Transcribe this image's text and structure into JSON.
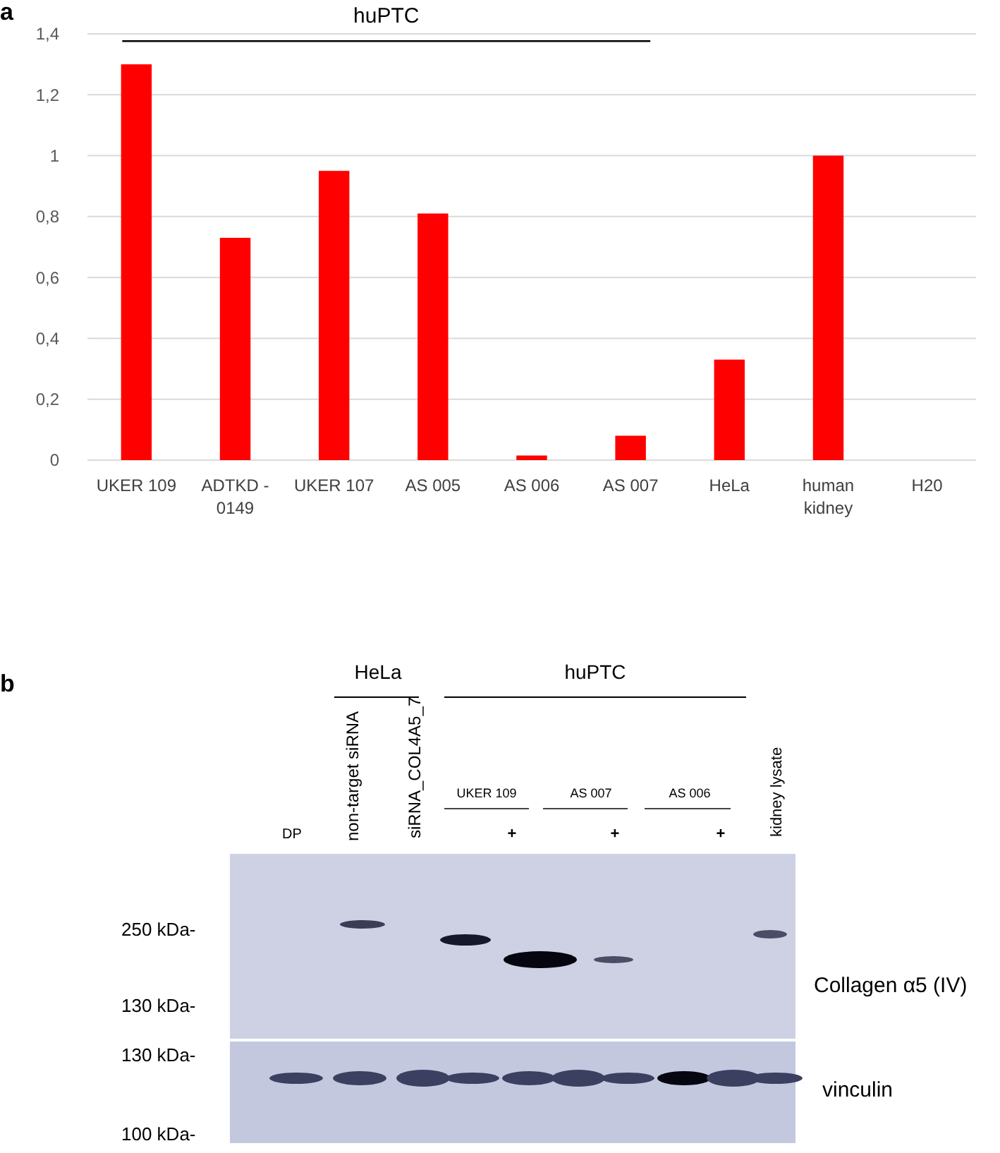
{
  "chart_data": [
    {
      "type": "bar",
      "title": "a",
      "categories": [
        "UKER 109",
        "ADTKD -\n0149",
        "UKER 107",
        "AS 005",
        "AS 006",
        "AS 007",
        "HeLa",
        "human\nkidney",
        "H20"
      ],
      "values": [
        1.3,
        0.73,
        0.95,
        0.81,
        0.015,
        0.08,
        0.33,
        1.0,
        0
      ],
      "color": "#ff0000",
      "ylim": [
        0,
        1.4
      ],
      "yticks": [
        0,
        {
          "value": 0.2,
          "label": "0,2"
        },
        {
          "value": 0.4,
          "label": "0,4"
        },
        {
          "value": 0.6,
          "label": "0,6"
        },
        {
          "value": 0.8,
          "label": "0,8"
        },
        1,
        {
          "value": 1.2,
          "label": "1,2"
        },
        {
          "value": 1.4,
          "label": "1,4"
        }
      ],
      "grid": "y",
      "annotations": [
        "huPTC"
      ]
    },
    {
      "type": "other",
      "title": "b",
      "annotations": [
        "HeLa",
        "huPTC",
        "non-target siRNA",
        "siRNA_COL4A5_7",
        "UKER 109",
        "AS 007",
        "AS 006",
        "kidney lysate",
        "DP",
        "+",
        "+",
        "+",
        "250 kDa-",
        "130 kDa-",
        "130 kDa-",
        "100 kDa-",
        "Collagen α5 (IV)",
        "vinculin"
      ]
    }
  ]
}
